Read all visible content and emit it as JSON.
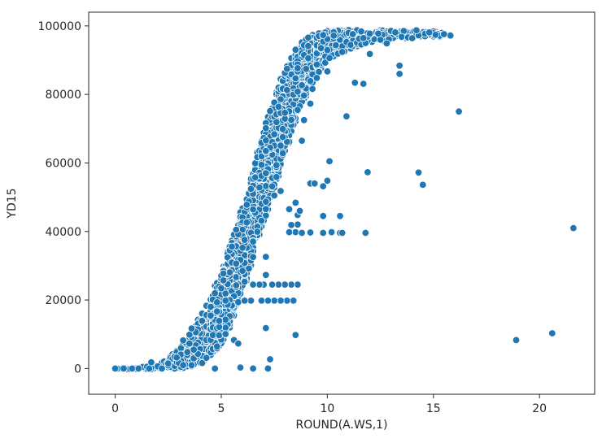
{
  "chart_data": {
    "type": "scatter",
    "title": "",
    "xlabel": "ROUND(A.WS,1)",
    "ylabel": "YD15",
    "xlim": [
      -1.25,
      22.6
    ],
    "ylim": [
      -7500,
      104000
    ],
    "xticks": [
      0,
      5,
      10,
      15,
      20
    ],
    "yticks": [
      0,
      20000,
      40000,
      60000,
      80000,
      100000
    ],
    "xtick_labels": [
      "0",
      "5",
      "10",
      "15",
      "20"
    ],
    "ytick_labels": [
      "0",
      "20000",
      "40000",
      "60000",
      "80000",
      "100000"
    ],
    "grid": false,
    "legend": "none",
    "color": "#1f77b4",
    "description": "",
    "trend_band": {
      "x": [
        0,
        1,
        2,
        2.5,
        3,
        3.5,
        4,
        4.5,
        5,
        5.5,
        6,
        6.5,
        7,
        7.5,
        8,
        8.5,
        9,
        9.5,
        10,
        11,
        12,
        13,
        14,
        15
      ],
      "y_low": [
        -200,
        -200,
        -200,
        -100,
        0,
        500,
        1500,
        3500,
        7000,
        13000,
        22000,
        32000,
        43000,
        53000,
        63000,
        72000,
        80000,
        86000,
        90000,
        93000,
        95000,
        96000,
        96500,
        96800
      ],
      "y_high": [
        100,
        100,
        1500,
        3000,
        6000,
        10000,
        15000,
        21000,
        28000,
        37000,
        47000,
        58000,
        69000,
        79000,
        87000,
        93000,
        96500,
        98000,
        98500,
        98800,
        98800,
        98700,
        98600,
        98400
      ]
    },
    "outliers": [
      {
        "x": 16.2,
        "y": 75000
      },
      {
        "x": 21.6,
        "y": 41000
      },
      {
        "x": 18.9,
        "y": 8300
      },
      {
        "x": 20.6,
        "y": 10300
      },
      {
        "x": 14.3,
        "y": 57200
      },
      {
        "x": 14.5,
        "y": 53600
      },
      {
        "x": 11.9,
        "y": 57300
      },
      {
        "x": 11.8,
        "y": 39600
      },
      {
        "x": 10.9,
        "y": 73600
      },
      {
        "x": 10.1,
        "y": 60500
      },
      {
        "x": 10.0,
        "y": 54800
      },
      {
        "x": 9.8,
        "y": 53200
      },
      {
        "x": 9.2,
        "y": 54000
      },
      {
        "x": 9.4,
        "y": 54000
      },
      {
        "x": 9.8,
        "y": 44500
      },
      {
        "x": 10.6,
        "y": 44500
      },
      {
        "x": 10.2,
        "y": 39800
      },
      {
        "x": 10.6,
        "y": 39600
      },
      {
        "x": 10.7,
        "y": 39600
      },
      {
        "x": 9.8,
        "y": 39600
      },
      {
        "x": 9.2,
        "y": 39700
      },
      {
        "x": 8.5,
        "y": 39800
      },
      {
        "x": 8.2,
        "y": 39800
      },
      {
        "x": 8.8,
        "y": 39600
      },
      {
        "x": 13.4,
        "y": 88400
      },
      {
        "x": 13.4,
        "y": 86000
      },
      {
        "x": 11.7,
        "y": 83100
      },
      {
        "x": 11.3,
        "y": 83400
      },
      {
        "x": 15.8,
        "y": 97200
      },
      {
        "x": 15.5,
        "y": 97600
      },
      {
        "x": 8.5,
        "y": 9800
      },
      {
        "x": 7.3,
        "y": 2700
      },
      {
        "x": 7.1,
        "y": 11800
      },
      {
        "x": 6.5,
        "y": 0
      },
      {
        "x": 7.2,
        "y": 0
      },
      {
        "x": 5.9,
        "y": 300
      },
      {
        "x": 8.6,
        "y": 24500
      },
      {
        "x": 8.3,
        "y": 24500
      },
      {
        "x": 8.0,
        "y": 24500
      },
      {
        "x": 7.7,
        "y": 24500
      },
      {
        "x": 7.4,
        "y": 24500
      },
      {
        "x": 7.0,
        "y": 24500
      },
      {
        "x": 6.8,
        "y": 24500
      },
      {
        "x": 6.5,
        "y": 24500
      },
      {
        "x": 8.4,
        "y": 19800
      },
      {
        "x": 8.1,
        "y": 19800
      },
      {
        "x": 7.8,
        "y": 19800
      },
      {
        "x": 7.5,
        "y": 19800
      },
      {
        "x": 7.2,
        "y": 19800
      },
      {
        "x": 6.9,
        "y": 19800
      },
      {
        "x": 6.4,
        "y": 19800
      },
      {
        "x": 6.1,
        "y": 19800
      },
      {
        "x": 7.1,
        "y": 32600
      },
      {
        "x": 7.1,
        "y": 27300
      },
      {
        "x": 6.0,
        "y": 28500
      },
      {
        "x": 5.7,
        "y": 24300
      },
      {
        "x": 5.0,
        "y": 23400
      },
      {
        "x": 4.7,
        "y": 22000
      },
      {
        "x": 4.5,
        "y": 18000
      },
      {
        "x": 3.6,
        "y": 11700
      },
      {
        "x": 3.2,
        "y": 8200
      },
      {
        "x": 4.9,
        "y": 13900
      },
      {
        "x": 5.2,
        "y": 19800
      },
      {
        "x": 5.6,
        "y": 8300
      },
      {
        "x": 5.8,
        "y": 7300
      },
      {
        "x": 4.7,
        "y": 0
      },
      {
        "x": 4.1,
        "y": 1600
      },
      {
        "x": 4.3,
        "y": 3100
      },
      {
        "x": 8.6,
        "y": 42000
      },
      {
        "x": 8.6,
        "y": 44800
      },
      {
        "x": 8.2,
        "y": 46500
      },
      {
        "x": 8.5,
        "y": 48400
      },
      {
        "x": 8.7,
        "y": 46000
      },
      {
        "x": 8.3,
        "y": 41900
      },
      {
        "x": 7.8,
        "y": 51800
      },
      {
        "x": 7.5,
        "y": 50500
      },
      {
        "x": 2.5,
        "y": 1500
      },
      {
        "x": 1.7,
        "y": 1800
      },
      {
        "x": 2.9,
        "y": 3200
      },
      {
        "x": 2.2,
        "y": 0
      },
      {
        "x": 0.0,
        "y": 0
      },
      {
        "x": 0.4,
        "y": 0
      },
      {
        "x": 0.8,
        "y": 0
      },
      {
        "x": 1.1,
        "y": 0
      },
      {
        "x": 1.6,
        "y": 0
      },
      {
        "x": 9.5,
        "y": 84800
      },
      {
        "x": 9.3,
        "y": 81600
      },
      {
        "x": 9.2,
        "y": 77300
      },
      {
        "x": 8.9,
        "y": 72500
      },
      {
        "x": 8.8,
        "y": 66500
      },
      {
        "x": 10.0,
        "y": 86700
      },
      {
        "x": 12.8,
        "y": 94900
      },
      {
        "x": 14.0,
        "y": 96400
      },
      {
        "x": 14.8,
        "y": 98100
      },
      {
        "x": 14.2,
        "y": 98700
      },
      {
        "x": 12.0,
        "y": 91800
      }
    ]
  }
}
